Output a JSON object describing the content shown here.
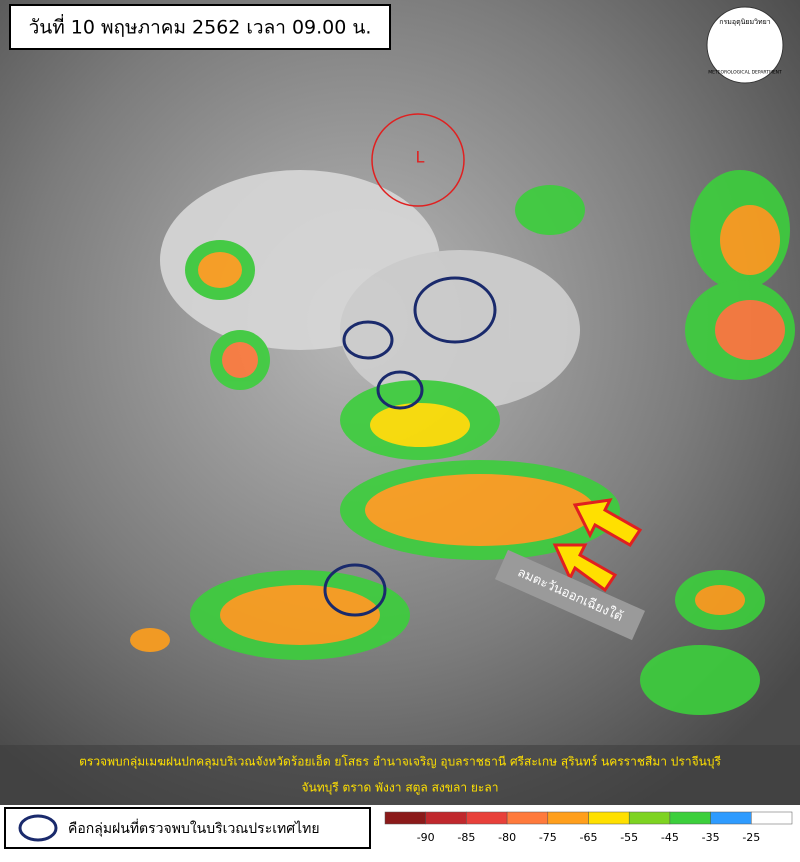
{
  "header": {
    "title": "วันที่ 10 พฤษภาคม 2562 เวลา 09.00 น."
  },
  "logo": {
    "thai": "กรมอุตุนิยมวิทยา",
    "english": "METEOROLOGICAL DEPARTMENT"
  },
  "map": {
    "low_label": "L",
    "wind_label": "ลมตะวันออกเฉียงใต้"
  },
  "caption": {
    "lines": [
      "ตรวจพบกลุ่มเมฆฝนปกคลุมบริเวณจังหวัดร้อยเอ็ด ยโสธร อำนาจเจริญ อุบลราชธานี ศรีสะเกษ สุรินทร์ นครราชสีมา ปราจีนบุรี",
      "จันทบุรี ตราด พังงา สตูล สงขลา ยะลา"
    ]
  },
  "legend": {
    "label": "คือกลุ่มฝนที่ตรวจพบในบริเวณประเทศไทย"
  },
  "scale": {
    "ticks": [
      -90,
      -85,
      -80,
      -75,
      -65,
      -55,
      -45,
      -35,
      -25
    ],
    "colors": [
      "#8b1a1a",
      "#c0282d",
      "#e8403a",
      "#ff7a3c",
      "#ff9f1c",
      "#ffe000",
      "#7ed321",
      "#3ccf3c",
      "#2e9bff",
      "#ffffff"
    ]
  }
}
